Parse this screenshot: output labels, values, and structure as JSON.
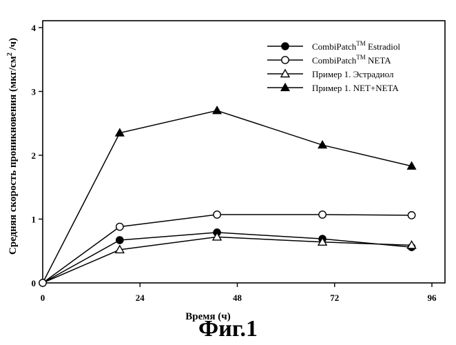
{
  "chart_data": {
    "type": "line",
    "xlabel": "Время (ч)",
    "ylabel": "Средняя скорость проникновения (мкг/см² /ч)",
    "ylabel_parts": {
      "pre": "Средняя скорость проникновения (мкг/см",
      "sup": "2",
      "post": " /ч)"
    },
    "xlim": [
      0,
      96
    ],
    "ylim": [
      0,
      4
    ],
    "xticks": [
      0,
      24,
      48,
      72,
      96
    ],
    "yticks": [
      0,
      1,
      2,
      3,
      4
    ],
    "grid": false,
    "legend_position": "top-right",
    "series": [
      {
        "name": "CombiPatch™ Estradiol",
        "legend_base": "CombiPatch",
        "legend_sup": "TM",
        "legend_rest": " Estradiol",
        "marker": "filled-circle",
        "x": [
          0,
          19,
          43,
          69,
          91
        ],
        "y": [
          0.0,
          0.67,
          0.79,
          0.69,
          0.56
        ]
      },
      {
        "name": "CombiPatch™ NETA",
        "legend_base": "CombiPatch",
        "legend_sup": "TM",
        "legend_rest": " NETA",
        "marker": "open-circle",
        "x": [
          0,
          19,
          43,
          69,
          91
        ],
        "y": [
          0.0,
          0.88,
          1.07,
          1.07,
          1.06
        ]
      },
      {
        "name": "Пример 1. Эстрадиол",
        "legend_base": "Пример 1. Эстрадиол",
        "legend_sup": "",
        "legend_rest": "",
        "marker": "open-triangle",
        "x": [
          0,
          19,
          43,
          69,
          91
        ],
        "y": [
          0.0,
          0.52,
          0.72,
          0.64,
          0.59
        ]
      },
      {
        "name": "Пример 1. NET+NETA",
        "legend_base": "Пример 1. NET+NETA",
        "legend_sup": "",
        "legend_rest": "",
        "marker": "filled-triangle",
        "x": [
          0,
          19,
          43,
          69,
          91
        ],
        "y": [
          0.0,
          2.35,
          2.7,
          2.16,
          1.83
        ]
      }
    ]
  },
  "caption": "Фиг.1"
}
